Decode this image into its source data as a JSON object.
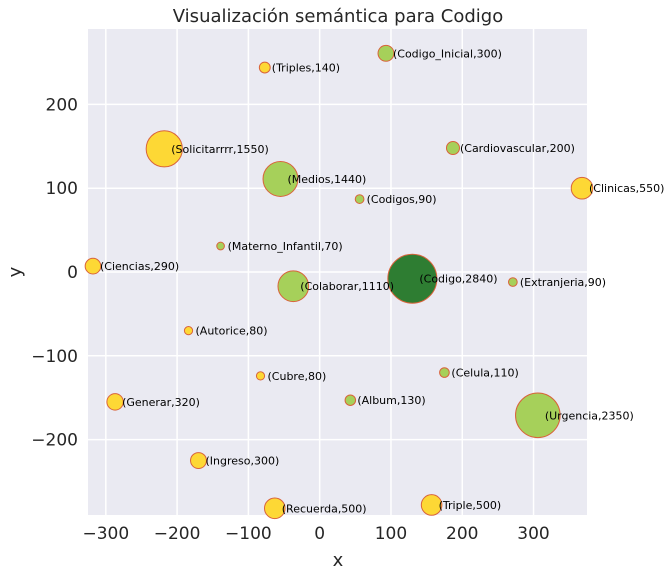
{
  "chart_data": {
    "type": "scatter",
    "title": "Visualización semántica para Codigo",
    "xlabel": "x",
    "ylabel": "y",
    "xlim": [
      -325,
      375
    ],
    "ylim": [
      -290,
      290
    ],
    "xticks": [
      -300,
      -200,
      -100,
      0,
      100,
      200,
      300
    ],
    "yticks": [
      -200,
      -100,
      0,
      100,
      200
    ],
    "grid": true,
    "colors": {
      "background": "#eaeaf2",
      "grid": "#ffffff",
      "edge": "#d9633b",
      "yellow": "#fdd835",
      "light_green": "#a6d05a",
      "dark_green": "#2e7d32"
    },
    "points": [
      {
        "word": "Codigo_Inicial",
        "value": 300,
        "x": 93,
        "y": 261,
        "color": "light_green",
        "label": "(Codigo_Inicial,300)"
      },
      {
        "word": "Triples",
        "value": 140,
        "x": -77,
        "y": 244,
        "color": "yellow",
        "label": "(Triples,140)"
      },
      {
        "word": "Cardiovascular",
        "value": 200,
        "x": 187,
        "y": 148,
        "color": "light_green",
        "label": "(Cardiovascular,200)"
      },
      {
        "word": "Solicitarrrr",
        "value": 1550,
        "x": -218,
        "y": 147,
        "color": "yellow",
        "label": "(Solicitarrrr,1550)"
      },
      {
        "word": "Medios",
        "value": 1440,
        "x": -55,
        "y": 111,
        "color": "light_green",
        "label": "(Medios,1440)"
      },
      {
        "word": "Clinicas",
        "value": 550,
        "x": 368,
        "y": 100,
        "color": "yellow",
        "label": "(Clinicas,550)"
      },
      {
        "word": "Codigos",
        "value": 90,
        "x": 56,
        "y": 87,
        "color": "light_green",
        "label": "(Codigos,90)"
      },
      {
        "word": "Materno_Infantil",
        "value": 70,
        "x": -139,
        "y": 31,
        "color": "light_green",
        "label": "(Materno_Infantil,70)"
      },
      {
        "word": "Ciencias",
        "value": 290,
        "x": -318,
        "y": 7,
        "color": "yellow",
        "label": "(Ciencias,290)"
      },
      {
        "word": "Codigo",
        "value": 2840,
        "x": 130,
        "y": -8,
        "color": "dark_green",
        "label": "(Codigo,2840)"
      },
      {
        "word": "Extranjeria",
        "value": 90,
        "x": 271,
        "y": -12,
        "color": "light_green",
        "label": "(Extranjeria,90)"
      },
      {
        "word": "Colaborar",
        "value": 1110,
        "x": -37,
        "y": -17,
        "color": "light_green",
        "label": "(Colaborar,1110)"
      },
      {
        "word": "Autorice",
        "value": 80,
        "x": -184,
        "y": -70,
        "color": "yellow",
        "label": "(Autorice,80)"
      },
      {
        "word": "Celula",
        "value": 110,
        "x": 175,
        "y": -120,
        "color": "light_green",
        "label": "(Celula,110)"
      },
      {
        "word": "Cubre",
        "value": 80,
        "x": -83,
        "y": -124,
        "color": "yellow",
        "label": "(Cubre,80)"
      },
      {
        "word": "Album",
        "value": 130,
        "x": 43,
        "y": -153,
        "color": "light_green",
        "label": "(Album,130)"
      },
      {
        "word": "Generar",
        "value": 320,
        "x": -287,
        "y": -155,
        "color": "yellow",
        "label": "(Generar,320)"
      },
      {
        "word": "Urgencia",
        "value": 2350,
        "x": 306,
        "y": -171,
        "color": "light_green",
        "label": "(Urgencia,2350)"
      },
      {
        "word": "Ingreso",
        "value": 300,
        "x": -170,
        "y": -225,
        "color": "yellow",
        "label": "(Ingreso,300)"
      },
      {
        "word": "Recuerda",
        "value": 500,
        "x": -63,
        "y": -282,
        "color": "yellow",
        "label": "(Recuerda,500)"
      },
      {
        "word": "Triple",
        "value": 500,
        "x": 157,
        "y": -278,
        "color": "yellow",
        "label": "(Triple,500)"
      }
    ]
  }
}
